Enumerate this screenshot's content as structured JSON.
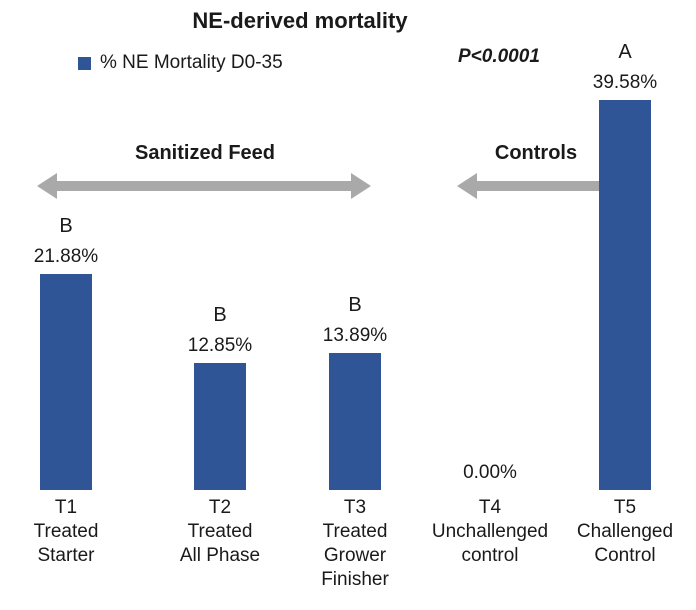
{
  "title": "NE-derived mortality",
  "legend": {
    "label": "% NE Mortality D0-35",
    "color": "#2F5597",
    "swatch_icon": "blue-square"
  },
  "p_value": "P<0.0001",
  "annotations": {
    "sanitized_feed": "Sanitized Feed",
    "controls": "Controls"
  },
  "chart_data": {
    "type": "bar",
    "title": "NE-derived mortality",
    "legend_entries": [
      "% NE Mortality D0-35"
    ],
    "categories": [
      "T1 Treated Starter",
      "T2 Treated All Phase",
      "T3 Treated Grower Finisher",
      "T4 Unchallenged control",
      "T5 Challenged Control"
    ],
    "category_lines": [
      [
        "T1",
        "Treated",
        "Starter"
      ],
      [
        "T2",
        "Treated",
        "All Phase"
      ],
      [
        "T3",
        "Treated",
        "Grower",
        "Finisher"
      ],
      [
        "T4",
        "Unchallenged",
        "control"
      ],
      [
        "T5",
        "Challenged",
        "Control"
      ]
    ],
    "values": [
      21.88,
      12.85,
      13.89,
      0.0,
      39.58
    ],
    "value_labels": [
      "21.88%",
      "12.85%",
      "13.89%",
      "0.00%",
      "39.58%"
    ],
    "sig_letters": [
      "B",
      "B",
      "B",
      "",
      "A"
    ],
    "ylabel": "% NE Mortality D0-35",
    "xlabel": "",
    "ylim": [
      0,
      40
    ],
    "grid": false,
    "legend_position": "top-left",
    "bar_color": "#2F5597",
    "arrow_color": "#a9a9a9",
    "group_annotations": [
      {
        "label": "Sanitized Feed",
        "covers": [
          "T1",
          "T2",
          "T3"
        ]
      },
      {
        "label": "Controls",
        "covers": [
          "T4",
          "T5"
        ]
      }
    ]
  }
}
